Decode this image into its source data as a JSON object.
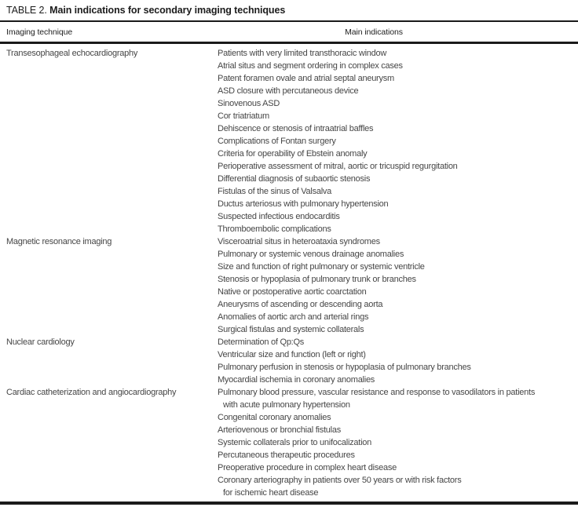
{
  "table": {
    "title_prefix": "TABLE 2.",
    "title": "Main indications for secondary imaging techniques",
    "columns": {
      "left": "Imaging technique",
      "right": "Main indications"
    },
    "groups": [
      {
        "technique": "Transesophageal echocardiography",
        "indications": [
          {
            "text": "Patients with very limited transthoracic window",
            "indent": false
          },
          {
            "text": "Atrial situs and segment ordering in complex cases",
            "indent": false
          },
          {
            "text": "Patent foramen ovale and atrial septal aneurysm",
            "indent": false
          },
          {
            "text": "ASD closure with percutaneous device",
            "indent": false
          },
          {
            "text": "Sinovenous ASD",
            "indent": false
          },
          {
            "text": "Cor triatriatum",
            "indent": false
          },
          {
            "text": "Dehiscence or stenosis of intraatrial baffles",
            "indent": false
          },
          {
            "text": "Complications of Fontan surgery",
            "indent": false
          },
          {
            "text": "Criteria for operability of Ebstein anomaly",
            "indent": false
          },
          {
            "text": "Perioperative assessment of mitral, aortic or tricuspid regurgitation",
            "indent": false
          },
          {
            "text": "Differential diagnosis of subaortic stenosis",
            "indent": false
          },
          {
            "text": "Fistulas of the sinus of Valsalva",
            "indent": false
          },
          {
            "text": "Ductus arteriosus with pulmonary hypertension",
            "indent": false
          },
          {
            "text": "Suspected infectious endocarditis",
            "indent": false
          },
          {
            "text": "Thromboembolic complications",
            "indent": false
          }
        ]
      },
      {
        "technique": "Magnetic resonance imaging",
        "indications": [
          {
            "text": "Visceroatrial situs in heteroataxia syndromes",
            "indent": false
          },
          {
            "text": "Pulmonary or systemic venous drainage anomalies",
            "indent": false
          },
          {
            "text": "Size and function of right pulmonary or systemic ventricle",
            "indent": false
          },
          {
            "text": "Stenosis or hypoplasia of pulmonary trunk or branches",
            "indent": false
          },
          {
            "text": "Native or postoperative aortic coarctation",
            "indent": false
          },
          {
            "text": "Aneurysms of ascending or descending aorta",
            "indent": false
          },
          {
            "text": "Anomalies of aortic arch and arterial rings",
            "indent": false
          },
          {
            "text": "Surgical fistulas and systemic collaterals",
            "indent": false
          }
        ]
      },
      {
        "technique": "Nuclear cardiology",
        "indications": [
          {
            "text": "Determination of Qp:Qs",
            "indent": false
          },
          {
            "text": "Ventricular size and function (left or right)",
            "indent": false
          },
          {
            "text": "Pulmonary perfusion in stenosis or hypoplasia of pulmonary branches",
            "indent": false
          },
          {
            "text": "Myocardial ischemia in coronary anomalies",
            "indent": false
          }
        ]
      },
      {
        "technique": "Cardiac catheterization and angiocardiography",
        "indications": [
          {
            "text": "Pulmonary blood pressure, vascular resistance and response to vasodilators in patients",
            "indent": false
          },
          {
            "text": "with acute pulmonary hypertension",
            "indent": true
          },
          {
            "text": "Congenital coronary anomalies",
            "indent": false
          },
          {
            "text": "Arteriovenous or bronchial fistulas",
            "indent": false
          },
          {
            "text": "Systemic collaterals prior to unifocalization",
            "indent": false
          },
          {
            "text": "Percutaneous therapeutic procedures",
            "indent": false
          },
          {
            "text": "Preoperative procedure in complex heart disease",
            "indent": false
          },
          {
            "text": "Coronary arteriography in patients over 50 years or with risk factors",
            "indent": false
          },
          {
            "text": "for ischemic heart disease",
            "indent": true
          }
        ]
      }
    ]
  }
}
